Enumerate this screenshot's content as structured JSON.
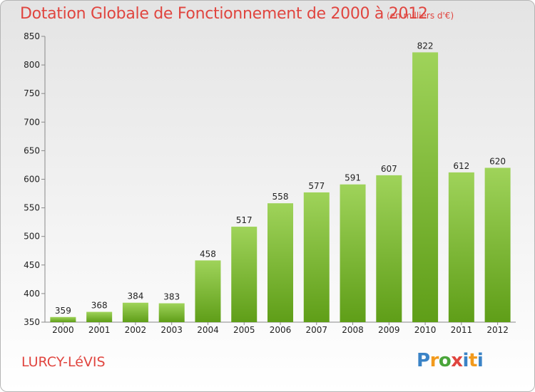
{
  "header": {
    "title": "Dotation Globale de Fonctionnement de 2000 à 2012",
    "units": "(en milliers d'€)"
  },
  "footer": {
    "town": "LURCY-LéVIS",
    "logo": "Proxiti"
  },
  "colors": {
    "title": "#e0453f",
    "bar_top": "#9fd35a",
    "bar_bottom": "#5f9e18"
  },
  "chart_data": {
    "type": "bar",
    "title": "Dotation Globale de Fonctionnement de 2000 à 2012",
    "subtitle": "(en milliers d'€)",
    "categories": [
      "2000",
      "2001",
      "2002",
      "2003",
      "2004",
      "2005",
      "2006",
      "2007",
      "2008",
      "2009",
      "2010",
      "2011",
      "2012"
    ],
    "values": [
      359,
      368,
      384,
      383,
      458,
      517,
      558,
      577,
      591,
      607,
      822,
      612,
      620
    ],
    "ylim": [
      350,
      850
    ],
    "yticks": [
      350,
      400,
      450,
      500,
      550,
      600,
      650,
      700,
      750,
      800,
      850
    ],
    "grid": false,
    "legend": "none"
  }
}
